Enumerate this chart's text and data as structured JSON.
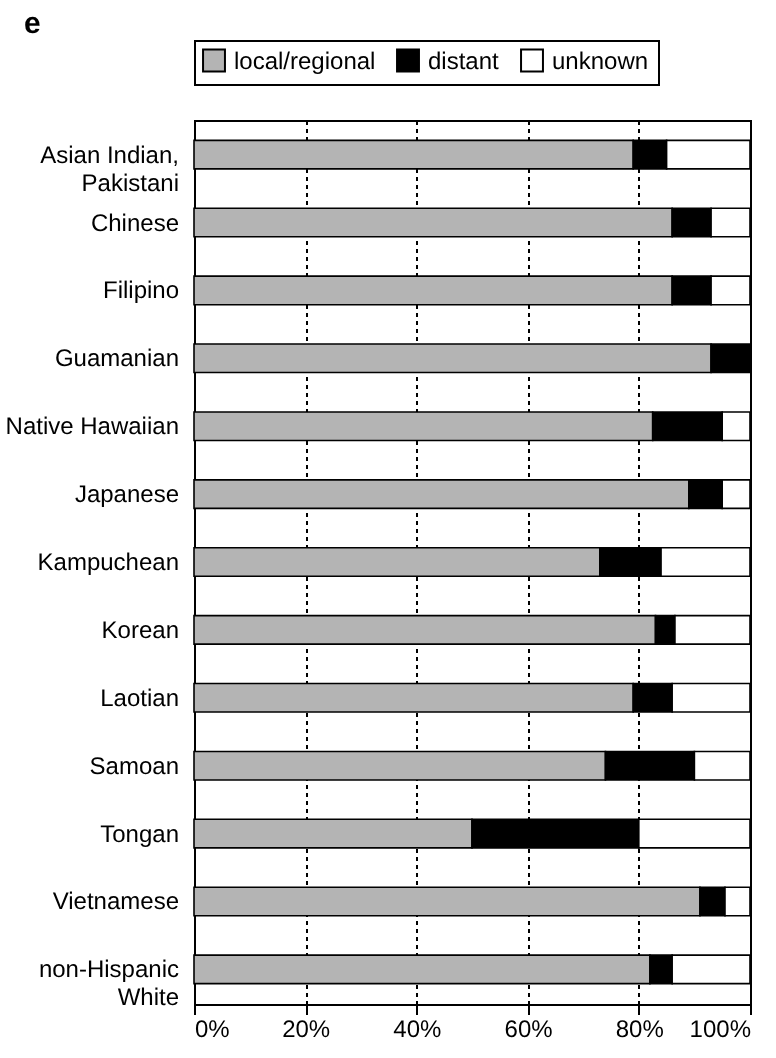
{
  "chart_data": {
    "type": "bar",
    "title": "e",
    "orientation": "horizontal",
    "stacked": true,
    "categories": [
      "Asian Indian, Pakistani",
      "Chinese",
      "Filipino",
      "Guamanian",
      "Native Hawaiian",
      "Japanese",
      "Kampuchean",
      "Korean",
      "Laotian",
      "Samoan",
      "Tongan",
      "Vietnamese",
      "non-Hispanic White"
    ],
    "series": [
      {
        "name": "local/regional",
        "color": "#b4b4b4",
        "values": [
          79,
          86,
          86,
          93,
          82.5,
          89,
          73,
          83,
          79,
          74,
          50,
          91,
          82
        ]
      },
      {
        "name": "distant",
        "color": "#000000",
        "values": [
          6,
          7,
          7,
          7,
          12.5,
          6,
          11,
          3.5,
          7,
          16,
          30,
          4.5,
          4
        ]
      },
      {
        "name": "unknown",
        "color": "#ffffff",
        "values": [
          15,
          7,
          7,
          0,
          5,
          5,
          16,
          13.5,
          14,
          10,
          20,
          4.5,
          14
        ]
      }
    ],
    "xlim": [
      0,
      100
    ],
    "xticks": [
      {
        "value": 0,
        "label": "0%"
      },
      {
        "value": 20,
        "label": "20%"
      },
      {
        "value": 40,
        "label": "40%"
      },
      {
        "value": 60,
        "label": "60%"
      },
      {
        "value": 80,
        "label": "80%"
      },
      {
        "value": 100,
        "label": "100%"
      }
    ],
    "grid": "x",
    "legend": "top"
  }
}
